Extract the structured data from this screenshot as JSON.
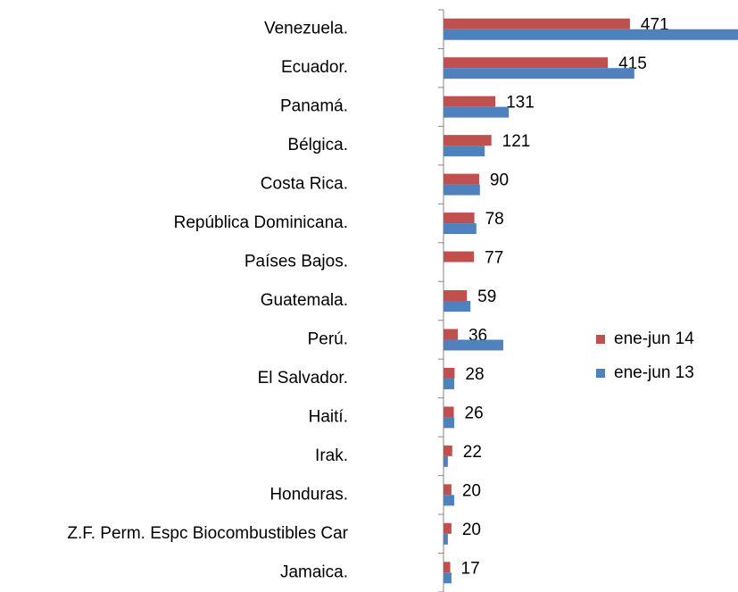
{
  "chart_data": {
    "type": "hbar",
    "categories": [
      "Venezuela.",
      "Ecuador.",
      "Panamá.",
      "Bélgica.",
      "Costa Rica.",
      "República Dominicana.",
      "Países Bajos.",
      "Guatemala.",
      "Perú.",
      "El Salvador.",
      "Haití.",
      "Irak.",
      "Honduras.",
      "Z.F. Perm. Espc Biocombustibles Car",
      "Jamaica."
    ],
    "series": [
      {
        "name": "ene-jun 14",
        "color": "#c0504d",
        "values": [
          471,
          415,
          131,
          121,
          90,
          78,
          77,
          59,
          36,
          28,
          26,
          22,
          20,
          20,
          17
        ]
      },
      {
        "name": "ene-jun 13",
        "color": "#4f81bd",
        "values": [
          744,
          482,
          165,
          104,
          92,
          83,
          0,
          68,
          151,
          27,
          27,
          11,
          27,
          11,
          20
        ]
      }
    ],
    "xlim": [
      0,
      744
    ],
    "legend": "right"
  }
}
